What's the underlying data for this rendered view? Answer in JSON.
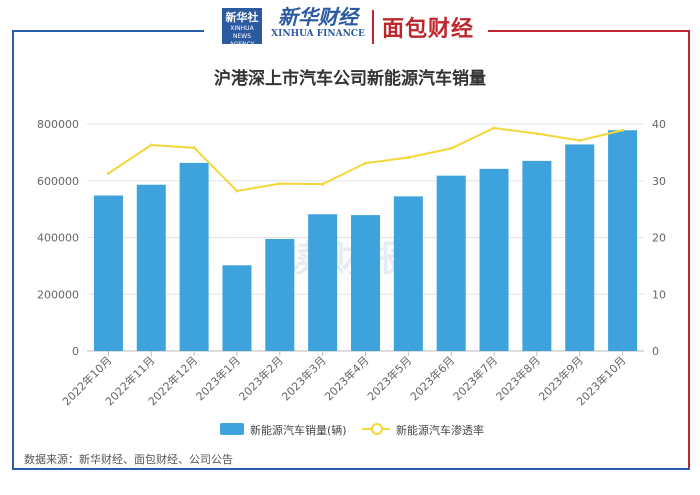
{
  "header": {
    "logo1_text": "新华社",
    "logo1_sub": "XINHUA NEWS AGENCY",
    "brand1_cn": "新华财经",
    "brand1_en": "XINHUA FINANCE",
    "brand2": "面包财经"
  },
  "watermark": "读财报",
  "source": "数据来源：新华财经、面包财经、公司公告",
  "colors": {
    "bar": "#3ea2dc",
    "line": "#f2d63a",
    "frame_left": "#2a5ea8",
    "frame_right": "#c0262d"
  },
  "chart_data": {
    "type": "bar",
    "title": "沪港深上市汽车公司新能源汽车销量",
    "categories": [
      "2022年10月",
      "2022年11月",
      "2022年12月",
      "2023年1月",
      "2023年2月",
      "2023年3月",
      "2023年4月",
      "2023年5月",
      "2023年6月",
      "2023年7月",
      "2023年8月",
      "2023年9月",
      "2023年10月"
    ],
    "series": [
      {
        "name": "新能源汽车销量(辆)",
        "type": "bar",
        "axis": "left",
        "values": [
          548000,
          586000,
          663000,
          302000,
          395000,
          482000,
          479000,
          545000,
          618000,
          642000,
          670000,
          728000,
          778000
        ]
      },
      {
        "name": "新能源汽车渗透率",
        "type": "line",
        "axis": "right",
        "values": [
          31.3,
          36.3,
          35.8,
          28.2,
          29.5,
          29.4,
          33.1,
          34.1,
          35.7,
          39.3,
          38.3,
          37.1,
          38.9
        ]
      }
    ],
    "y_left": {
      "min": 0,
      "max": 800000,
      "ticks": [
        "0",
        "200000",
        "400000",
        "600000",
        "800000"
      ]
    },
    "y_right": {
      "min": 0,
      "max": 40,
      "ticks": [
        "0",
        "10",
        "20",
        "30",
        "40"
      ]
    },
    "grid": true,
    "legend_position": "bottom"
  }
}
